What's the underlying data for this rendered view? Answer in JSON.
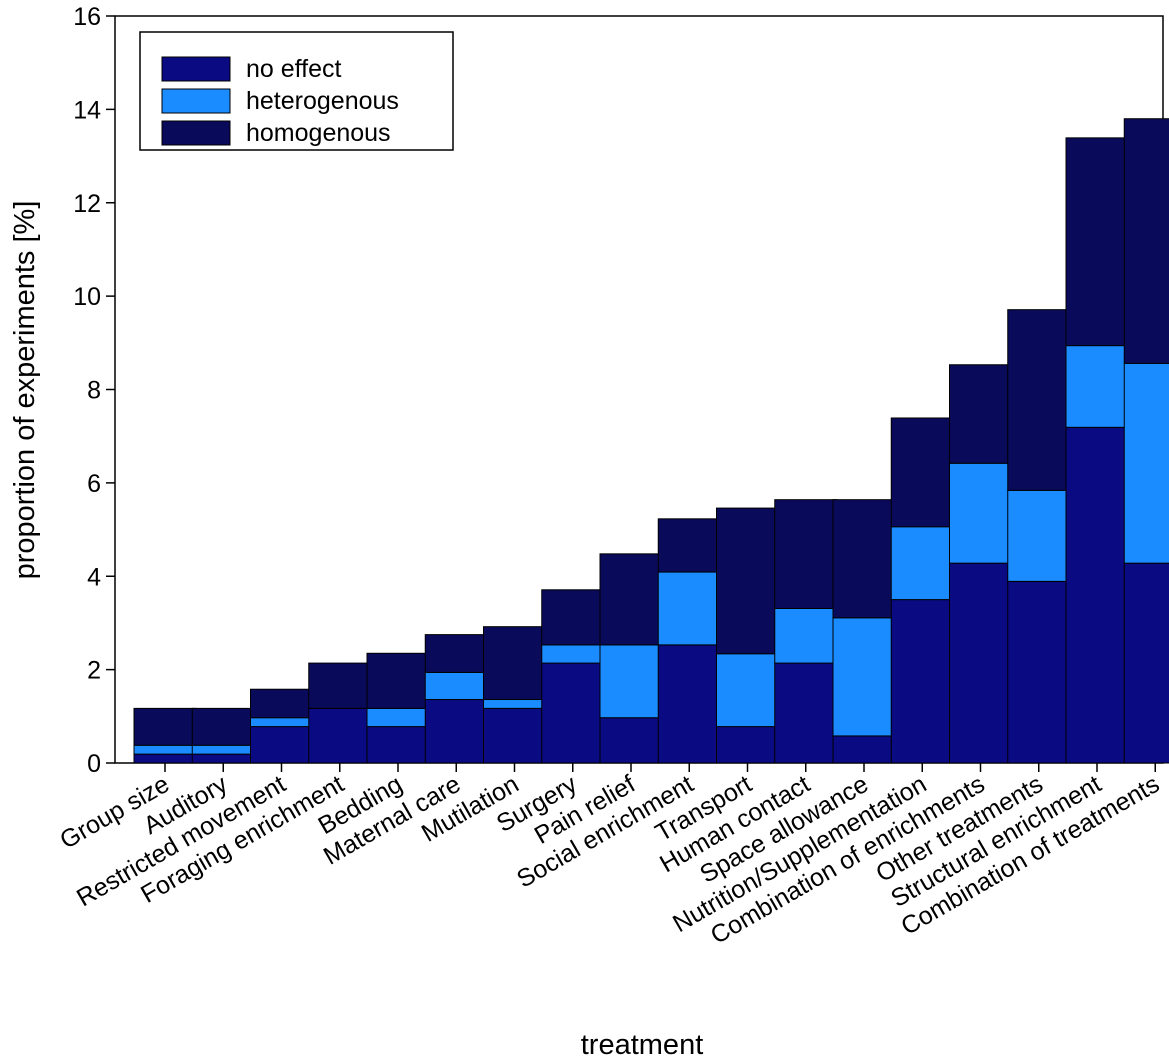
{
  "chart_data": {
    "type": "bar",
    "stacked": true,
    "title": "",
    "xlabel": "treatment",
    "ylabel": "proportion of experiments [%]",
    "ylim": [
      0,
      16
    ],
    "yticks": [
      0,
      2,
      4,
      6,
      8,
      10,
      12,
      14,
      16
    ],
    "grid": false,
    "legend_position": "top-left",
    "categories": [
      "Group size",
      "Auditory",
      "Restricted movement",
      "Foraging enrichment",
      "Bedding",
      "Maternal care",
      "Mutilation",
      "Surgery",
      "Pain relief",
      "Social enrichment",
      "Transport",
      "Human contact",
      "Space allowance",
      "Nutrition/Supplementation",
      "Combination of enrichments",
      "Other treatments",
      "Structural enrichment",
      "Combination of treatments"
    ],
    "series": [
      {
        "name": "no effect",
        "color": "#0a0a82",
        "values": [
          0.19,
          0.19,
          0.78,
          1.17,
          0.78,
          1.36,
          1.17,
          2.14,
          0.97,
          2.53,
          0.78,
          2.14,
          0.58,
          3.5,
          4.28,
          3.89,
          7.19,
          4.28
        ]
      },
      {
        "name": "heterogenous",
        "color": "#1a8cff",
        "values": [
          0.19,
          0.19,
          0.19,
          0.0,
          0.39,
          0.58,
          0.19,
          0.39,
          1.56,
          1.56,
          1.56,
          1.17,
          2.53,
          1.56,
          2.14,
          1.95,
          1.75,
          4.28
        ]
      },
      {
        "name": "homogenous",
        "color": "#0a0a5a",
        "values": [
          0.79,
          0.79,
          0.61,
          0.97,
          1.18,
          0.81,
          1.56,
          1.18,
          1.95,
          1.14,
          3.12,
          2.33,
          2.53,
          2.33,
          2.11,
          3.87,
          4.45,
          5.24
        ]
      }
    ]
  }
}
